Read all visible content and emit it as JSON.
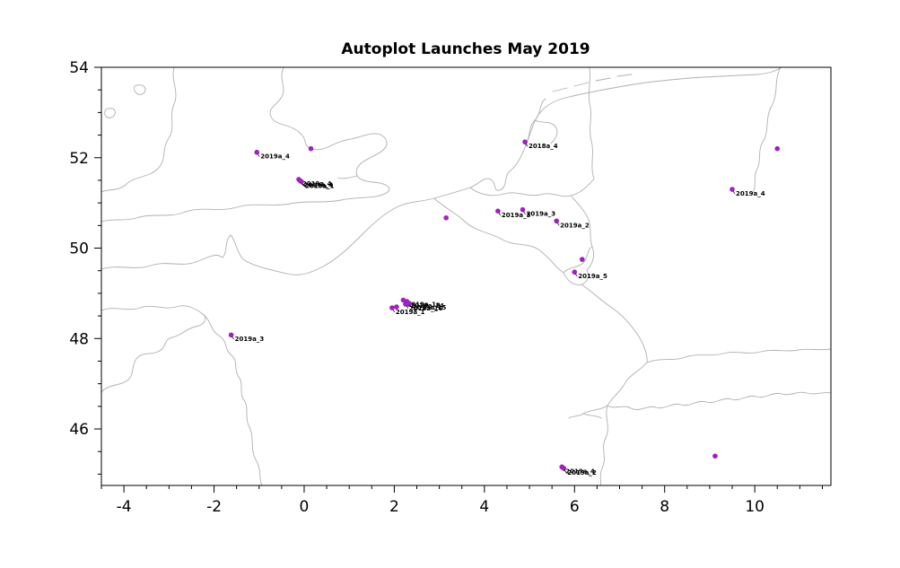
{
  "title": "Autoplot Launches May 2019",
  "colors": {
    "point": "#a020c0",
    "map_line": "#b0b0b0",
    "axis": "#000000",
    "label": "#000000"
  },
  "chart_data": {
    "type": "scatter",
    "title": "Autoplot Launches May 2019",
    "xlabel": "",
    "ylabel": "",
    "xlim": [
      -4.5,
      11.69
    ],
    "ylim": [
      44.75,
      54.0
    ],
    "xticks": [
      -4,
      -2,
      0,
      2,
      4,
      6,
      8,
      10
    ],
    "yticks": [
      46,
      48,
      50,
      52,
      54
    ],
    "minor_tick_step": 0.5,
    "grid": false,
    "legend": "none",
    "points": [
      {
        "x": -1.05,
        "y": 52.12,
        "label": "2019a_4"
      },
      {
        "x": 0.15,
        "y": 52.2,
        "label": ""
      },
      {
        "x": -0.12,
        "y": 51.52,
        "label": "2019a_4"
      },
      {
        "x": -0.09,
        "y": 51.49,
        "label": "2019a_4"
      },
      {
        "x": -0.06,
        "y": 51.47,
        "label": "2019a_1"
      },
      {
        "x": 4.9,
        "y": 52.35,
        "label": "2018a_4"
      },
      {
        "x": 10.5,
        "y": 52.2,
        "label": ""
      },
      {
        "x": 9.5,
        "y": 51.3,
        "label": "2019a_4"
      },
      {
        "x": 3.15,
        "y": 50.67,
        "label": ""
      },
      {
        "x": 4.3,
        "y": 50.82,
        "label": "2019a_3"
      },
      {
        "x": 4.85,
        "y": 50.85,
        "label": "2019a_3"
      },
      {
        "x": 5.6,
        "y": 50.6,
        "label": "2019a_2"
      },
      {
        "x": 6.17,
        "y": 49.75,
        "label": ""
      },
      {
        "x": 6.0,
        "y": 49.47,
        "label": "2019a_5"
      },
      {
        "x": 2.2,
        "y": 48.85,
        "label": "2019a_1a"
      },
      {
        "x": 2.28,
        "y": 48.82,
        "label": "2019a_14"
      },
      {
        "x": 2.33,
        "y": 48.78,
        "label": "2019a_15"
      },
      {
        "x": 2.25,
        "y": 48.76,
        "label": "2019a_16"
      },
      {
        "x": 2.05,
        "y": 48.7,
        "label": ""
      },
      {
        "x": 1.95,
        "y": 48.68,
        "label": "2019a_1"
      },
      {
        "x": -1.62,
        "y": 48.08,
        "label": "2019a_3"
      },
      {
        "x": 5.72,
        "y": 45.16,
        "label": "2019a_4"
      },
      {
        "x": 5.76,
        "y": 45.13,
        "label": "2019a_2"
      },
      {
        "x": 9.12,
        "y": 45.4,
        "label": ""
      }
    ]
  }
}
